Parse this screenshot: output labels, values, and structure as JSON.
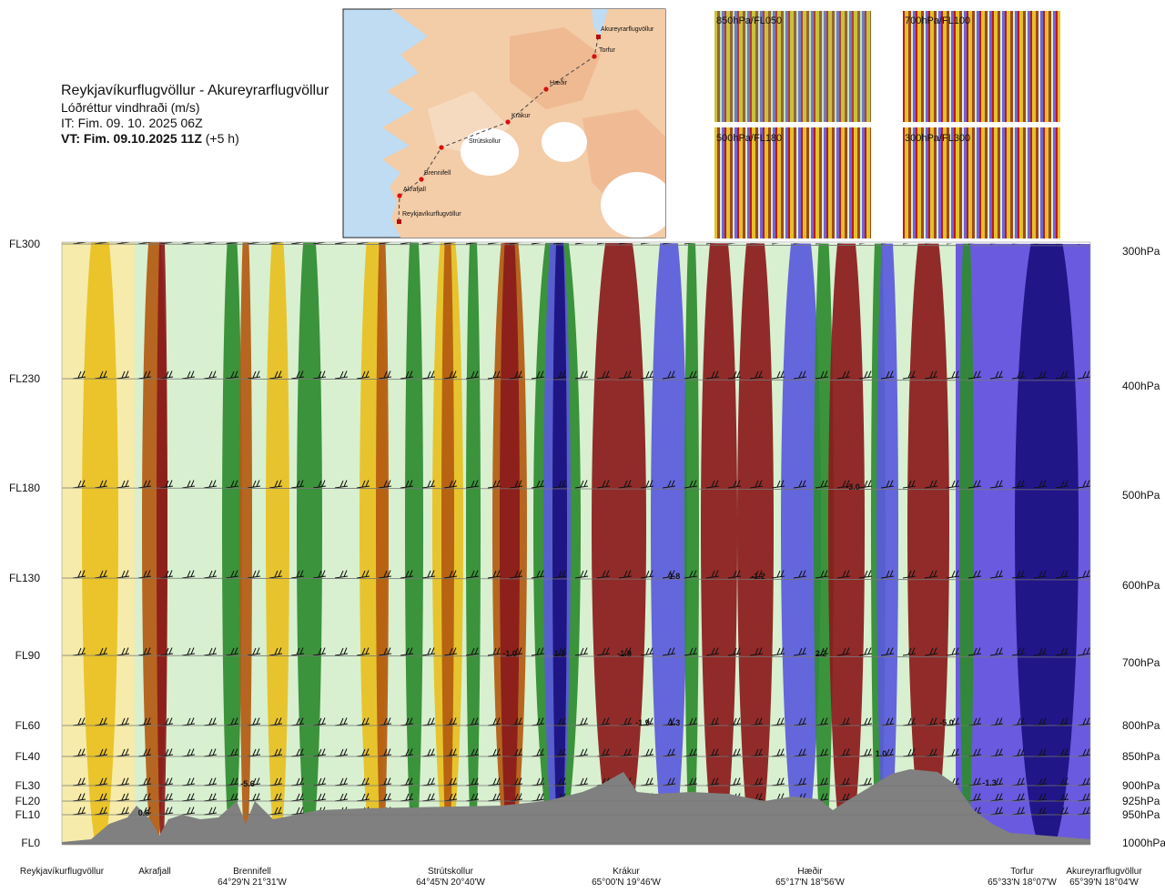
{
  "header": {
    "title": "Reykjavíkurflugvöllur - Akureyrarflugvöllur",
    "subtitle": "Lóðréttur vindhraði (m/s)",
    "init_time": "IT: Fim. 09. 10. 2025 06Z",
    "valid_time_bold": "VT: Fim. 09.10.2025 11Z",
    "valid_offset": "(+5 h)"
  },
  "map": {
    "stations": [
      "Akureyrarflugvöllur",
      "Torfur",
      "Hæðir",
      "Krákur",
      "Strútskollur",
      "Brennifell",
      "Akrafjall",
      "Reykjavíkurflugvöllur"
    ]
  },
  "thumbnails": [
    {
      "label": "850hPa/FL050"
    },
    {
      "label": "700hPa/FL100"
    },
    {
      "label": "500hPa/FL180"
    },
    {
      "label": "300hPa/FL300"
    }
  ],
  "colors": {
    "terrain": "#808080",
    "strong_down": "#8a1a1a",
    "down": "#b35a10",
    "weak_down": "#e8c020",
    "neutral": "#d8f0d0",
    "weak_up": "#2e8b2e",
    "up": "#5a5adc",
    "strong_up": "#1a1080"
  },
  "chart_data": {
    "type": "heatmap",
    "title": "Reykjavíkurflugvöllur - Akureyrarflugvöllur",
    "variable": "Lóðréttur vindhraði (m/s)",
    "left_axis": [
      "FL300",
      "FL230",
      "FL180",
      "FL130",
      "FL90",
      "FL60",
      "FL40",
      "FL30",
      "FL20",
      "FL10",
      "FL0"
    ],
    "right_axis": [
      "300hPa",
      "400hPa",
      "500hPa",
      "600hPa",
      "700hPa",
      "800hPa",
      "850hPa",
      "900hPa",
      "925hPa",
      "950hPa",
      "1000hPa"
    ],
    "bottom_labels": [
      {
        "name": "Reykjavíkurflugvöllur",
        "coord": ""
      },
      {
        "name": "Akrafjall",
        "coord": ""
      },
      {
        "name": "Brennifell",
        "coord": "64°29'N 21°31'W"
      },
      {
        "name": "Strútskollur",
        "coord": "64°45'N 20°40'W"
      },
      {
        "name": "Krákur",
        "coord": "65°00'N 19°46'W"
      },
      {
        "name": "Hæðir",
        "coord": "65°17'N 18°56'W"
      },
      {
        "name": "Torfur",
        "coord": "65°33'N 18°07'W"
      },
      {
        "name": "Akureyrarflugvöllur",
        "coord": "65°39'N 18°04'W"
      }
    ],
    "annotations": [
      "0.6",
      "-5.6",
      "-1.0",
      "1.2",
      "-1.8",
      "1.8",
      "-1.9",
      "1.3",
      "-1.2",
      "2.2",
      "1.0",
      "-3.0",
      "-5.0",
      "-1.3"
    ],
    "grid": true
  }
}
